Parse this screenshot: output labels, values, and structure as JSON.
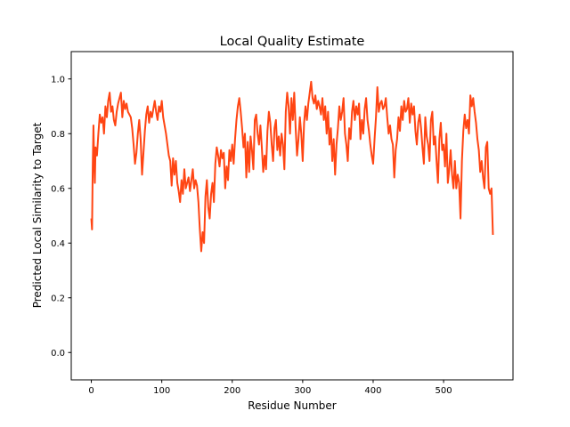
{
  "chart_data": {
    "type": "line",
    "title": "Local Quality Estimate",
    "xlabel": "Residue Number",
    "ylabel": "Predicted Local Similarity to Target",
    "xlim": [
      -28.5,
      598.5
    ],
    "ylim": [
      -0.1,
      1.1
    ],
    "xticks": [
      0,
      100,
      200,
      300,
      400,
      500
    ],
    "yticks": [
      0.0,
      0.2,
      0.4,
      0.6,
      0.8,
      1.0
    ],
    "xtick_labels": [
      "0",
      "100",
      "200",
      "300",
      "400",
      "500"
    ],
    "ytick_labels": [
      "0.0",
      "0.2",
      "0.4",
      "0.6",
      "0.8",
      "1.0"
    ],
    "grid": false,
    "series": [
      {
        "color": "#ff4513",
        "x": [
          0,
          1,
          2,
          3,
          4,
          5,
          6,
          8,
          10,
          12,
          14,
          16,
          18,
          20,
          22,
          24,
          26,
          28,
          30,
          32,
          34,
          36,
          38,
          40,
          42,
          44,
          46,
          48,
          50,
          52,
          54,
          56,
          58,
          60,
          62,
          64,
          66,
          68,
          70,
          72,
          74,
          76,
          78,
          80,
          82,
          84,
          86,
          88,
          90,
          92,
          94,
          96,
          98,
          100,
          102,
          104,
          106,
          108,
          110,
          112,
          114,
          116,
          118,
          120,
          122,
          124,
          126,
          128,
          130,
          132,
          134,
          136,
          138,
          140,
          142,
          144,
          146,
          148,
          150,
          152,
          154,
          156,
          158,
          160,
          162,
          164,
          166,
          168,
          170,
          172,
          174,
          176,
          178,
          180,
          182,
          184,
          186,
          188,
          190,
          192,
          194,
          196,
          198,
          200,
          202,
          204,
          206,
          208,
          210,
          212,
          214,
          216,
          218,
          220,
          222,
          224,
          226,
          228,
          230,
          232,
          234,
          236,
          238,
          240,
          242,
          244,
          246,
          248,
          250,
          252,
          254,
          256,
          258,
          260,
          262,
          264,
          266,
          268,
          270,
          272,
          274,
          276,
          278,
          280,
          282,
          284,
          286,
          288,
          290,
          292,
          294,
          296,
          298,
          300,
          302,
          304,
          306,
          308,
          310,
          312,
          314,
          316,
          318,
          320,
          322,
          324,
          326,
          328,
          330,
          332,
          334,
          336,
          338,
          340,
          342,
          344,
          346,
          348,
          350,
          352,
          354,
          356,
          358,
          360,
          362,
          364,
          366,
          368,
          370,
          372,
          374,
          376,
          378,
          380,
          382,
          384,
          386,
          388,
          390,
          392,
          394,
          396,
          398,
          400,
          402,
          404,
          406,
          408,
          410,
          412,
          414,
          416,
          418,
          420,
          422,
          424,
          426,
          428,
          430,
          432,
          434,
          436,
          438,
          440,
          442,
          444,
          446,
          448,
          450,
          452,
          454,
          456,
          458,
          460,
          462,
          464,
          466,
          468,
          470,
          472,
          474,
          476,
          478,
          480,
          482,
          484,
          486,
          488,
          490,
          492,
          494,
          496,
          498,
          500,
          502,
          504,
          506,
          508,
          510,
          512,
          514,
          516,
          518,
          520,
          522,
          524,
          526,
          528,
          530,
          532,
          534,
          536,
          538,
          540,
          542,
          544,
          546,
          548,
          550,
          552,
          554,
          556,
          558,
          560,
          562,
          564,
          566,
          568,
          570
        ],
        "y": [
          0.49,
          0.45,
          0.68,
          0.83,
          0.7,
          0.62,
          0.75,
          0.72,
          0.8,
          0.87,
          0.84,
          0.86,
          0.8,
          0.9,
          0.86,
          0.92,
          0.95,
          0.88,
          0.9,
          0.85,
          0.83,
          0.88,
          0.91,
          0.93,
          0.95,
          0.86,
          0.92,
          0.89,
          0.91,
          0.88,
          0.87,
          0.86,
          0.82,
          0.76,
          0.69,
          0.73,
          0.8,
          0.85,
          0.78,
          0.65,
          0.73,
          0.81,
          0.87,
          0.9,
          0.84,
          0.88,
          0.86,
          0.89,
          0.92,
          0.88,
          0.85,
          0.9,
          0.88,
          0.92,
          0.86,
          0.83,
          0.8,
          0.76,
          0.72,
          0.7,
          0.61,
          0.71,
          0.65,
          0.7,
          0.62,
          0.59,
          0.55,
          0.63,
          0.58,
          0.67,
          0.6,
          0.62,
          0.64,
          0.59,
          0.63,
          0.67,
          0.6,
          0.63,
          0.61,
          0.55,
          0.45,
          0.37,
          0.44,
          0.4,
          0.57,
          0.63,
          0.53,
          0.49,
          0.58,
          0.62,
          0.55,
          0.69,
          0.75,
          0.72,
          0.68,
          0.74,
          0.71,
          0.73,
          0.6,
          0.68,
          0.63,
          0.74,
          0.7,
          0.76,
          0.69,
          0.78,
          0.85,
          0.9,
          0.93,
          0.88,
          0.82,
          0.75,
          0.8,
          0.64,
          0.77,
          0.66,
          0.79,
          0.74,
          0.67,
          0.85,
          0.87,
          0.8,
          0.76,
          0.83,
          0.75,
          0.66,
          0.72,
          0.67,
          0.81,
          0.88,
          0.84,
          0.76,
          0.7,
          0.82,
          0.85,
          0.74,
          0.79,
          0.72,
          0.8,
          0.76,
          0.67,
          0.88,
          0.95,
          0.9,
          0.8,
          0.93,
          0.85,
          0.95,
          0.82,
          0.72,
          0.78,
          0.86,
          0.8,
          0.7,
          0.84,
          0.9,
          0.85,
          0.91,
          0.95,
          0.99,
          0.93,
          0.91,
          0.94,
          0.89,
          0.92,
          0.9,
          0.87,
          0.93,
          0.85,
          0.9,
          0.8,
          0.88,
          0.76,
          0.82,
          0.7,
          0.78,
          0.65,
          0.76,
          0.82,
          0.9,
          0.85,
          0.88,
          0.93,
          0.8,
          0.76,
          0.7,
          0.82,
          0.78,
          0.88,
          0.92,
          0.85,
          0.9,
          0.87,
          0.91,
          0.78,
          0.85,
          0.8,
          0.89,
          0.93,
          0.85,
          0.81,
          0.76,
          0.72,
          0.69,
          0.78,
          0.86,
          0.97,
          0.88,
          0.91,
          0.92,
          0.89,
          0.9,
          0.93,
          0.86,
          0.8,
          0.83,
          0.78,
          0.76,
          0.64,
          0.74,
          0.78,
          0.86,
          0.81,
          0.9,
          0.85,
          0.92,
          0.88,
          0.89,
          0.93,
          0.84,
          0.91,
          0.87,
          0.9,
          0.81,
          0.76,
          0.84,
          0.87,
          0.82,
          0.75,
          0.69,
          0.86,
          0.79,
          0.76,
          0.7,
          0.85,
          0.88,
          0.76,
          0.79,
          0.7,
          0.62,
          0.78,
          0.84,
          0.74,
          0.76,
          0.68,
          0.8,
          0.62,
          0.67,
          0.74,
          0.65,
          0.6,
          0.7,
          0.6,
          0.65,
          0.62,
          0.49,
          0.7,
          0.81,
          0.87,
          0.82,
          0.85,
          0.8,
          0.94,
          0.9,
          0.93,
          0.88,
          0.84,
          0.78,
          0.74,
          0.66,
          0.7,
          0.64,
          0.6,
          0.75,
          0.77,
          0.6,
          0.58,
          0.6,
          0.43
        ]
      }
    ]
  }
}
